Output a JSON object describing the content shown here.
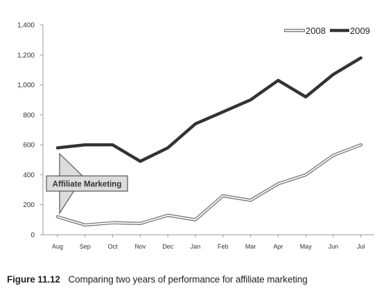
{
  "chart_data": {
    "type": "line",
    "categories": [
      "Aug",
      "Sep",
      "Oct",
      "Nov",
      "Dec",
      "Jan",
      "Feb",
      "Mar",
      "Apr",
      "May",
      "Jun",
      "Jul"
    ],
    "series": [
      {
        "name": "2008",
        "values": [
          120,
          65,
          80,
          75,
          130,
          100,
          260,
          230,
          340,
          400,
          530,
          600
        ],
        "color": "#888888"
      },
      {
        "name": "2009",
        "values": [
          580,
          600,
          600,
          490,
          580,
          740,
          820,
          900,
          1030,
          920,
          1070,
          1180
        ],
        "color": "#333333"
      }
    ],
    "yticks": [
      "0",
      "200",
      "400",
      "600",
      "800",
      "1,000",
      "1,200",
      "1,400"
    ],
    "ylim": [
      0,
      1400
    ],
    "grid": false,
    "legend": "top-right",
    "annotation": {
      "text": "Affiliate Marketing",
      "category": "Aug"
    }
  },
  "caption": {
    "figure_number": "Figure 11.12",
    "text": "Comparing two years of performance for affiliate marketing"
  }
}
